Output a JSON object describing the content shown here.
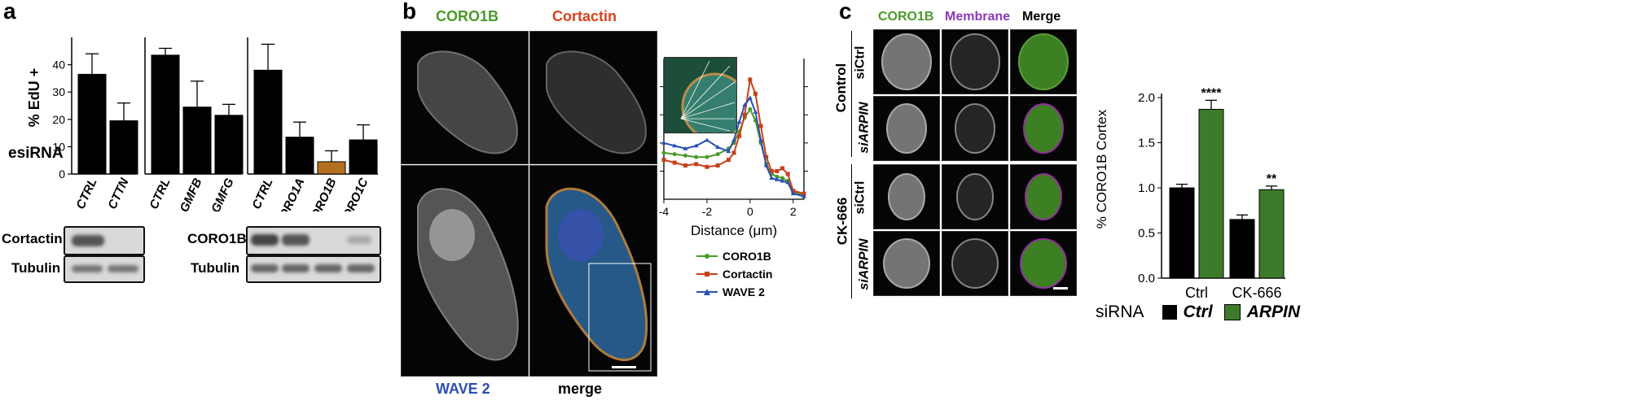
{
  "panel_a": {
    "letter": "a",
    "ylabel": "% EdU +",
    "yticks": [
      "0",
      "10",
      "20",
      "30",
      "40"
    ],
    "esirna_label": "esiRNA",
    "blot_left_rows": [
      "Cortactin",
      "Tubulin"
    ],
    "blot_right_rows": [
      "CORO1B",
      "Tubulin"
    ]
  },
  "panel_b": {
    "letter": "b",
    "coro1b": "CORO1B",
    "cortactin": "Cortactin",
    "wave2": "WAVE 2",
    "merge": "merge",
    "xlabel": "Distance (μm)",
    "xticks": [
      "-4",
      "-2",
      "0",
      "2"
    ],
    "legend": [
      "CORO1B",
      "Cortactin",
      "WAVE 2"
    ]
  },
  "panel_c": {
    "letter": "c",
    "col_headers": [
      "CORO1B",
      "Membrane",
      "Merge"
    ],
    "group_control": "Control",
    "group_ck666": "CK-666",
    "row_labels": [
      "siCtrl",
      "siARPIN",
      "siCtrl",
      "siARPIN"
    ],
    "ylabel": "% CORO1B Cortex",
    "yticks": [
      "0.0",
      "0.5",
      "1.0",
      "1.5",
      "2.0"
    ],
    "xticks": [
      "Ctrl",
      "CK-666"
    ],
    "sig": [
      "****",
      "**"
    ],
    "legend_title": "siRNA",
    "legend": [
      "Ctrl",
      "ARPIN"
    ]
  },
  "colors": {
    "black_bar": "#000000",
    "highlight_bar": "#b5701f",
    "green_bar": "#3d7a2a",
    "coro1b_text": "#4a9a2a",
    "cortactin_text": "#d9421b",
    "wave2_text": "#2a4fb5",
    "membrane_text": "#8a3ab9"
  },
  "chart_data": [
    {
      "type": "bar",
      "title": "",
      "ylabel": "% EdU +",
      "xlabel": "esiRNA",
      "ylim": [
        0,
        50
      ],
      "groups": [
        {
          "categories": [
            "CTRL",
            "CTTN"
          ],
          "values": [
            36.5,
            19.5
          ],
          "errors": [
            7.5,
            6.5
          ]
        },
        {
          "categories": [
            "CTRL",
            "GMFB",
            "GMFG"
          ],
          "values": [
            43.5,
            24.5,
            21.5
          ],
          "errors": [
            2.5,
            9.5,
            4
          ]
        },
        {
          "categories": [
            "CTRL",
            "CORO1A",
            "CORO1B",
            "CORO1C"
          ],
          "values": [
            38,
            13.5,
            4.5,
            12.5
          ],
          "errors": [
            9.5,
            5.5,
            4,
            5.5
          ],
          "highlight": "CORO1B"
        }
      ]
    },
    {
      "type": "line",
      "xlabel": "Distance (μm)",
      "xlim": [
        -4,
        2.5
      ],
      "series": [
        {
          "name": "CORO1B",
          "color": "#4a9a2a",
          "x": [
            -4,
            -3.5,
            -3,
            -2.5,
            -2,
            -1.5,
            -1,
            -0.75,
            -0.5,
            -0.25,
            0,
            0.25,
            0.5,
            0.75,
            1,
            1.25,
            1.5,
            1.75,
            2,
            2.5
          ],
          "y": [
            0.33,
            0.32,
            0.31,
            0.3,
            0.3,
            0.32,
            0.36,
            0.4,
            0.48,
            0.58,
            0.64,
            0.56,
            0.4,
            0.25,
            0.18,
            0.16,
            0.15,
            0.13,
            0.05,
            0.03
          ]
        },
        {
          "name": "Cortactin",
          "color": "#c8401a",
          "x": [
            -4,
            -3.5,
            -3,
            -2.5,
            -2,
            -1.5,
            -1,
            -0.75,
            -0.5,
            -0.25,
            0,
            0.25,
            0.5,
            0.75,
            1,
            1.25,
            1.5,
            1.75,
            2,
            2.5
          ],
          "y": [
            0.28,
            0.26,
            0.24,
            0.25,
            0.23,
            0.24,
            0.28,
            0.33,
            0.45,
            0.6,
            0.85,
            0.75,
            0.52,
            0.3,
            0.2,
            0.2,
            0.22,
            0.18,
            0.06,
            0.04
          ]
        },
        {
          "name": "WAVE 2",
          "color": "#2a4fb5",
          "x": [
            -4,
            -3.5,
            -3,
            -2.5,
            -2,
            -1.5,
            -1,
            -0.75,
            -0.5,
            -0.25,
            0,
            0.25,
            0.5,
            0.75,
            1,
            1.25,
            1.5,
            1.75,
            2,
            2.5
          ],
          "y": [
            0.4,
            0.38,
            0.36,
            0.38,
            0.42,
            0.37,
            0.34,
            0.42,
            0.55,
            0.67,
            0.72,
            0.62,
            0.42,
            0.24,
            0.15,
            0.14,
            0.13,
            0.12,
            0.04,
            0.02
          ]
        }
      ]
    },
    {
      "type": "bar",
      "ylabel": "% CORO1B Cortex",
      "categories": [
        "Ctrl",
        "CK-666"
      ],
      "ylim": [
        0,
        2.0
      ],
      "series": [
        {
          "name": "Ctrl",
          "color": "#000000",
          "values": [
            1.0,
            0.65
          ],
          "errors": [
            0.04,
            0.05
          ]
        },
        {
          "name": "ARPIN",
          "color": "#3d7a2a",
          "values": [
            1.87,
            0.98
          ],
          "errors": [
            0.1,
            0.04
          ]
        }
      ],
      "annotations": [
        "****",
        "**"
      ]
    }
  ]
}
